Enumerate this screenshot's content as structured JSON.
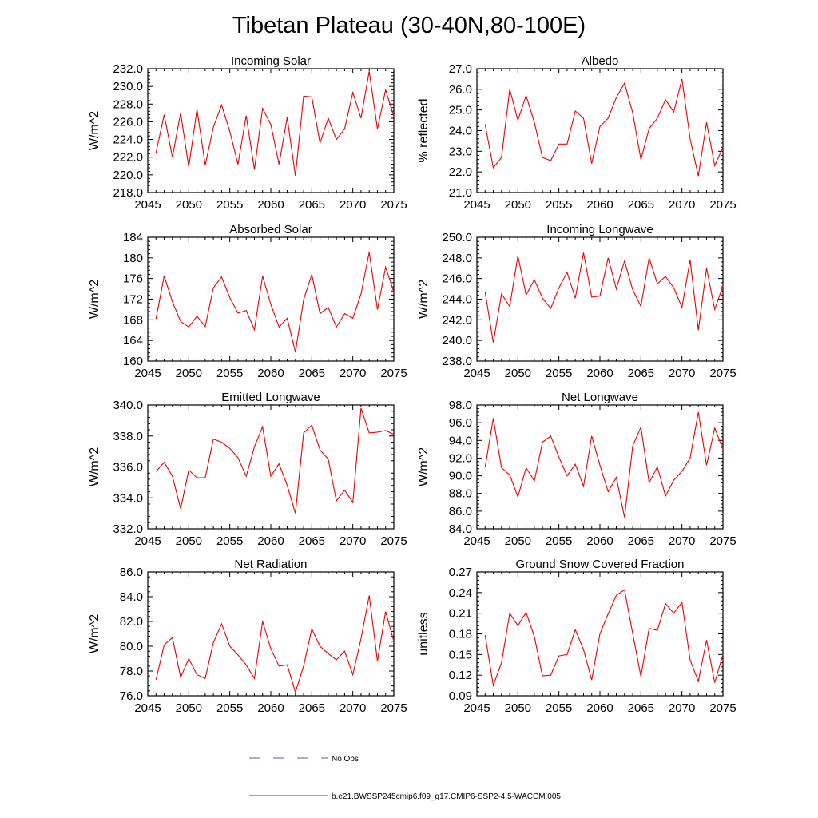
{
  "title": "Tibetan Plateau (30-40N,80-100E)",
  "chart_data": [
    {
      "type": "line",
      "title": "Incoming Solar",
      "ylabel": "W/m^2",
      "xlim": [
        2045,
        2075
      ],
      "ylim": [
        218,
        232
      ],
      "yticks": [
        "218.0",
        "220.0",
        "222.0",
        "224.0",
        "226.0",
        "228.0",
        "230.0",
        "232.0"
      ],
      "x": [
        2046,
        2047,
        2048,
        2049,
        2050,
        2051,
        2052,
        2053,
        2054,
        2055,
        2056,
        2057,
        2058,
        2059,
        2060,
        2061,
        2062,
        2063,
        2064,
        2065,
        2066,
        2067,
        2068,
        2069,
        2070,
        2071,
        2072,
        2073,
        2074,
        2075
      ],
      "values": [
        222.5,
        226.8,
        222.0,
        227.0,
        220.9,
        227.4,
        221.1,
        225.4,
        227.9,
        224.9,
        221.2,
        226.7,
        220.6,
        227.5,
        225.7,
        221.2,
        226.5,
        219.9,
        228.9,
        228.8,
        223.6,
        226.4,
        224.0,
        225.2,
        229.3,
        226.4,
        231.7,
        225.2,
        229.6,
        226.6
      ]
    },
    {
      "type": "line",
      "title": "Albedo",
      "ylabel": "% reflected",
      "xlim": [
        2045,
        2075
      ],
      "ylim": [
        21,
        27
      ],
      "yticks": [
        "21.0",
        "22.0",
        "23.0",
        "24.0",
        "25.0",
        "26.0",
        "27.0"
      ],
      "x": [
        2046,
        2047,
        2048,
        2049,
        2050,
        2051,
        2052,
        2053,
        2054,
        2055,
        2056,
        2057,
        2058,
        2059,
        2060,
        2061,
        2062,
        2063,
        2064,
        2065,
        2066,
        2067,
        2068,
        2069,
        2070,
        2071,
        2072,
        2073,
        2074,
        2075
      ],
      "values": [
        24.3,
        22.2,
        22.7,
        26.0,
        24.5,
        25.7,
        24.4,
        22.7,
        22.55,
        23.35,
        23.35,
        24.95,
        24.6,
        22.4,
        24.2,
        24.6,
        25.6,
        26.3,
        24.85,
        22.6,
        24.1,
        24.6,
        25.5,
        24.9,
        26.5,
        23.6,
        21.8,
        24.4,
        22.3,
        23.2
      ]
    },
    {
      "type": "line",
      "title": "Absorbed Solar",
      "ylabel": "W/m^2",
      "xlim": [
        2045,
        2075
      ],
      "ylim": [
        160,
        184
      ],
      "yticks": [
        "160",
        "164",
        "168",
        "172",
        "176",
        "180",
        "184"
      ],
      "x": [
        2046,
        2047,
        2048,
        2049,
        2050,
        2051,
        2052,
        2053,
        2054,
        2055,
        2056,
        2057,
        2058,
        2059,
        2060,
        2061,
        2062,
        2063,
        2064,
        2065,
        2066,
        2067,
        2068,
        2069,
        2070,
        2071,
        2072,
        2073,
        2074,
        2075
      ],
      "values": [
        168.2,
        176.5,
        171.5,
        167.7,
        166.6,
        168.7,
        166.7,
        174.2,
        176.3,
        172.3,
        169.3,
        169.8,
        166.1,
        176.5,
        171.0,
        166.6,
        168.3,
        161.7,
        171.9,
        176.8,
        169.2,
        170.4,
        166.6,
        169.2,
        168.3,
        173.0,
        181.1,
        170.0,
        178.2,
        173.4
      ]
    },
    {
      "type": "line",
      "title": "Incoming Longwave",
      "ylabel": "W/m^2",
      "xlim": [
        2045,
        2075
      ],
      "ylim": [
        238,
        250
      ],
      "yticks": [
        "238.0",
        "240.0",
        "242.0",
        "244.0",
        "246.0",
        "248.0",
        "250.0"
      ],
      "x": [
        2046,
        2047,
        2048,
        2049,
        2050,
        2051,
        2052,
        2053,
        2054,
        2055,
        2056,
        2057,
        2058,
        2059,
        2060,
        2061,
        2062,
        2063,
        2064,
        2065,
        2066,
        2067,
        2068,
        2069,
        2070,
        2071,
        2072,
        2073,
        2074,
        2075
      ],
      "values": [
        244.7,
        239.8,
        244.5,
        243.3,
        248.2,
        244.4,
        245.9,
        244.1,
        243.1,
        245.1,
        246.6,
        244.1,
        248.5,
        244.2,
        244.3,
        248.0,
        245.0,
        247.7,
        244.9,
        243.3,
        248.0,
        245.5,
        246.2,
        245.1,
        243.2,
        247.8,
        241.0,
        247.0,
        243.0,
        245.3
      ]
    },
    {
      "type": "line",
      "title": "Emitted Longwave",
      "ylabel": "W/m^2",
      "xlim": [
        2045,
        2075
      ],
      "ylim": [
        332,
        340
      ],
      "yticks": [
        "332.0",
        "334.0",
        "336.0",
        "338.0",
        "340.0"
      ],
      "x": [
        2046,
        2047,
        2048,
        2049,
        2050,
        2051,
        2052,
        2053,
        2054,
        2055,
        2056,
        2057,
        2058,
        2059,
        2060,
        2061,
        2062,
        2063,
        2064,
        2065,
        2066,
        2067,
        2068,
        2069,
        2070,
        2071,
        2072,
        2073,
        2074,
        2075
      ],
      "values": [
        335.7,
        336.3,
        335.4,
        333.3,
        335.8,
        335.3,
        335.3,
        337.8,
        337.6,
        337.2,
        336.6,
        335.4,
        337.3,
        338.6,
        335.4,
        336.2,
        334.8,
        333.0,
        338.2,
        338.7,
        337.1,
        336.5,
        333.8,
        334.5,
        333.7,
        339.8,
        338.2,
        338.25,
        338.35,
        338.1
      ]
    },
    {
      "type": "line",
      "title": "Net Longwave",
      "ylabel": "W/m^2",
      "xlim": [
        2045,
        2075
      ],
      "ylim": [
        84,
        98
      ],
      "yticks": [
        "84.0",
        "86.0",
        "88.0",
        "90.0",
        "92.0",
        "94.0",
        "96.0",
        "98.0"
      ],
      "x": [
        2046,
        2047,
        2048,
        2049,
        2050,
        2051,
        2052,
        2053,
        2054,
        2055,
        2056,
        2057,
        2058,
        2059,
        2060,
        2061,
        2062,
        2063,
        2064,
        2065,
        2066,
        2067,
        2068,
        2069,
        2070,
        2071,
        2072,
        2073,
        2074,
        2075
      ],
      "values": [
        91.0,
        96.5,
        90.9,
        90.1,
        87.6,
        90.9,
        89.4,
        93.8,
        94.5,
        92.1,
        90.0,
        91.3,
        88.8,
        94.5,
        91.2,
        88.2,
        89.8,
        85.3,
        93.4,
        95.5,
        89.2,
        91.0,
        87.7,
        89.5,
        90.5,
        92.0,
        97.2,
        91.2,
        95.4,
        93.0
      ]
    },
    {
      "type": "line",
      "title": "Net Radiation",
      "ylabel": "W/m^2",
      "xlim": [
        2045,
        2075
      ],
      "ylim": [
        76,
        86
      ],
      "yticks": [
        "76.0",
        "78.0",
        "80.0",
        "82.0",
        "84.0",
        "86.0"
      ],
      "x": [
        2046,
        2047,
        2048,
        2049,
        2050,
        2051,
        2052,
        2053,
        2054,
        2055,
        2056,
        2057,
        2058,
        2059,
        2060,
        2061,
        2062,
        2063,
        2064,
        2065,
        2066,
        2067,
        2068,
        2069,
        2070,
        2071,
        2072,
        2073,
        2074,
        2075
      ],
      "values": [
        77.3,
        80.1,
        80.7,
        77.5,
        79.0,
        77.7,
        77.4,
        80.3,
        81.8,
        80.0,
        79.3,
        78.5,
        77.4,
        82.0,
        79.8,
        78.4,
        78.5,
        76.3,
        78.4,
        81.4,
        80.0,
        79.4,
        78.9,
        79.6,
        77.7,
        80.6,
        84.1,
        78.8,
        82.8,
        80.4
      ]
    },
    {
      "type": "line",
      "title": "Ground Snow Covered Fraction",
      "ylabel": "unitless",
      "xlim": [
        2045,
        2075
      ],
      "ylim": [
        0.09,
        0.27
      ],
      "yticks": [
        "0.09",
        "0.12",
        "0.15",
        "0.18",
        "0.21",
        "0.24",
        "0.27"
      ],
      "x": [
        2046,
        2047,
        2048,
        2049,
        2050,
        2051,
        2052,
        2053,
        2054,
        2055,
        2056,
        2057,
        2058,
        2059,
        2060,
        2061,
        2062,
        2063,
        2064,
        2065,
        2066,
        2067,
        2068,
        2069,
        2070,
        2071,
        2072,
        2073,
        2074,
        2075
      ],
      "values": [
        0.178,
        0.105,
        0.138,
        0.21,
        0.192,
        0.211,
        0.176,
        0.119,
        0.12,
        0.148,
        0.15,
        0.186,
        0.157,
        0.113,
        0.18,
        0.209,
        0.236,
        0.244,
        0.18,
        0.118,
        0.188,
        0.185,
        0.224,
        0.21,
        0.226,
        0.142,
        0.111,
        0.171,
        0.109,
        0.15
      ]
    }
  ],
  "xticks": [
    "2045",
    "2050",
    "2055",
    "2060",
    "2065",
    "2070",
    "2075"
  ],
  "legend": {
    "entries": [
      {
        "label": "No Obs",
        "color": "#5555cc",
        "style": "dashed"
      },
      {
        "label": "b.e21.BWSSP245cmip6.f09_g17.CMIP6-SSP2-4.5-WACCM.005",
        "color": "#ee0000",
        "style": "solid"
      }
    ]
  }
}
